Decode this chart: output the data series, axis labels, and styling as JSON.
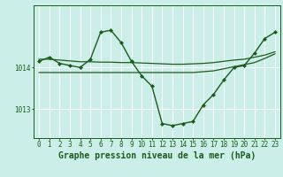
{
  "background_color": "#cceee8",
  "grid_color": "#ffffff",
  "line_color": "#1a5c1a",
  "xlabel": "Graphe pression niveau de la mer (hPa)",
  "xlabel_fontsize": 7,
  "tick_fontsize": 5.5,
  "ylabel_ticks": [
    1013,
    1014
  ],
  "xlim": [
    -0.5,
    23.5
  ],
  "ylim": [
    1012.3,
    1015.5
  ],
  "series": [
    {
      "x": [
        0,
        1,
        2,
        3,
        4,
        5,
        6,
        7,
        8,
        9,
        10,
        11,
        12,
        13,
        14,
        15,
        16,
        17,
        18,
        19,
        20,
        21,
        22,
        23
      ],
      "y": [
        1014.15,
        1014.25,
        1014.1,
        1014.05,
        1014.0,
        1014.2,
        1014.85,
        1014.9,
        1014.6,
        1014.15,
        1013.8,
        1013.55,
        1012.65,
        1012.6,
        1012.65,
        1012.7,
        1013.1,
        1013.35,
        1013.7,
        1014.0,
        1014.05,
        1014.35,
        1014.7,
        1014.85
      ],
      "marker": "D",
      "markersize": 2.0,
      "linewidth": 1.0
    },
    {
      "x": [
        0,
        1,
        2,
        3,
        4,
        5,
        6,
        7,
        8,
        9,
        10,
        11,
        12,
        13,
        14,
        15,
        16,
        17,
        18,
        19,
        20,
        21,
        22,
        23
      ],
      "y": [
        1014.2,
        1014.2,
        1014.18,
        1014.16,
        1014.14,
        1014.14,
        1014.13,
        1014.13,
        1014.12,
        1014.12,
        1014.11,
        1014.1,
        1014.09,
        1014.08,
        1014.08,
        1014.09,
        1014.1,
        1014.12,
        1014.15,
        1014.18,
        1014.2,
        1014.25,
        1014.3,
        1014.38
      ],
      "marker": null,
      "linewidth": 0.9
    },
    {
      "x": [
        0,
        1,
        2,
        3,
        4,
        5,
        6,
        7,
        8,
        9,
        10,
        11,
        12,
        13,
        14,
        15,
        16,
        17,
        18,
        19,
        20,
        21,
        22,
        23
      ],
      "y": [
        1013.88,
        1013.88,
        1013.88,
        1013.88,
        1013.88,
        1013.88,
        1013.88,
        1013.88,
        1013.88,
        1013.88,
        1013.88,
        1013.88,
        1013.88,
        1013.88,
        1013.88,
        1013.88,
        1013.9,
        1013.92,
        1013.97,
        1014.02,
        1014.07,
        1014.12,
        1014.22,
        1014.33
      ],
      "marker": null,
      "linewidth": 0.9
    }
  ],
  "xticks": [
    0,
    1,
    2,
    3,
    4,
    5,
    6,
    7,
    8,
    9,
    10,
    11,
    12,
    13,
    14,
    15,
    16,
    17,
    18,
    19,
    20,
    21,
    22,
    23
  ]
}
